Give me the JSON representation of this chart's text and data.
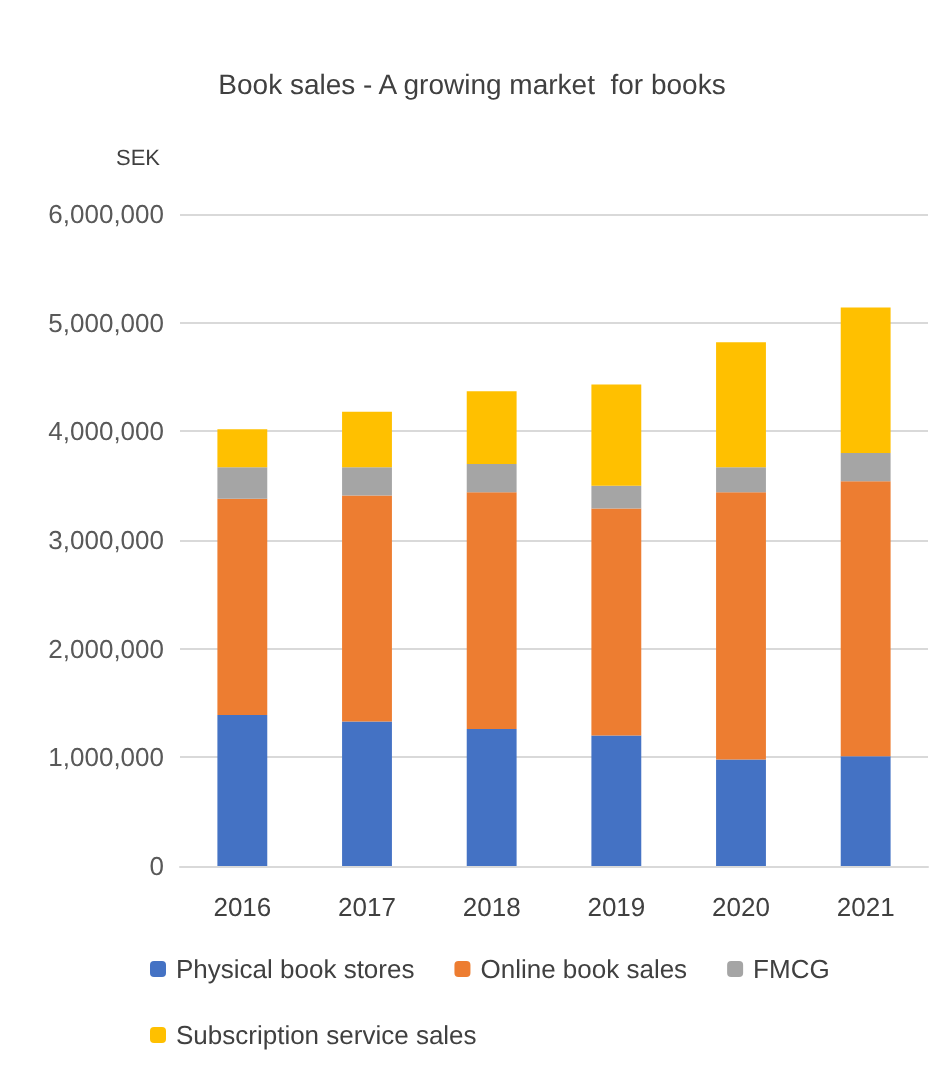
{
  "chart_data": {
    "type": "bar",
    "title": "Book sales - A growing market  for books",
    "ylabel": "SEK",
    "categories": [
      "2016",
      "2017",
      "2018",
      "2019",
      "2020",
      "2021"
    ],
    "stacked": true,
    "series": [
      {
        "name": "Physical book stores",
        "color": "#4472c4",
        "values": [
          1390000,
          1330000,
          1260000,
          1200000,
          980000,
          1010000
        ]
      },
      {
        "name": "Online book sales",
        "color": "#ed7d31",
        "values": [
          1990000,
          2080000,
          2180000,
          2090000,
          2460000,
          2530000
        ]
      },
      {
        "name": "FMCG",
        "color": "#a5a5a5",
        "values": [
          290000,
          260000,
          260000,
          210000,
          230000,
          260000
        ]
      },
      {
        "name": "Subscription service sales",
        "color": "#ffc000",
        "values": [
          350000,
          510000,
          670000,
          930000,
          1150000,
          1340000
        ]
      }
    ],
    "ylim": [
      0,
      6000000
    ],
    "yticks": [
      {
        "value": 0,
        "label": "0"
      },
      {
        "value": 1000000,
        "label": "1,000,000"
      },
      {
        "value": 2000000,
        "label": "2,000,000"
      },
      {
        "value": 3000000,
        "label": "3,000,000"
      },
      {
        "value": 4000000,
        "label": "4,000,000"
      },
      {
        "value": 5000000,
        "label": "5,000,000"
      },
      {
        "value": 6000000,
        "label": "6,000,000"
      }
    ],
    "grid": "y",
    "legend": "bottom"
  }
}
